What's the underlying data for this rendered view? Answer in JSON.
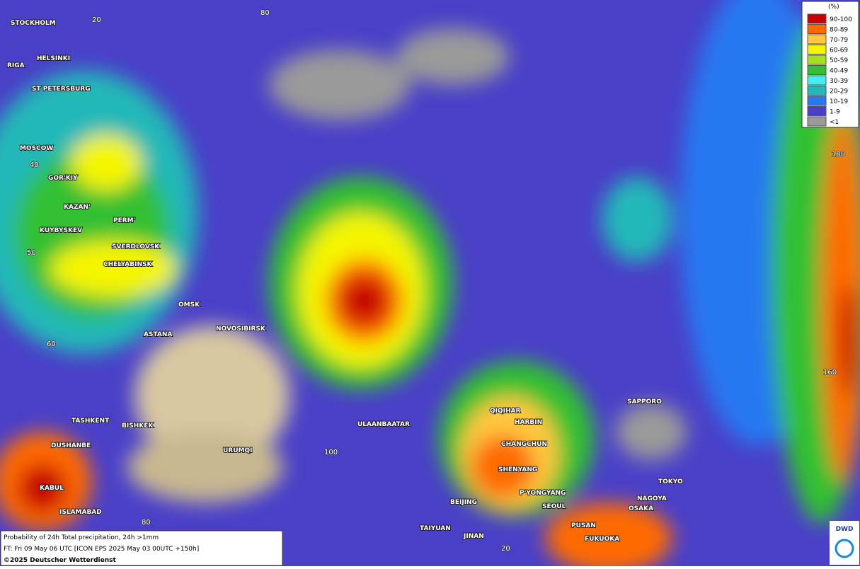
{
  "map": {
    "cities": [
      "STOCKHOLM",
      "HELSINKI",
      "RIGA",
      "ST PETERSBURG",
      "MOSCOW",
      "GOR'KIY",
      "KAZAN'",
      "PERM'",
      "KUYBYSKEV",
      "SVERDLOVSK",
      "CHELYABINSK",
      "OMSK",
      "ASTANA",
      "NOVOSIBIRSK",
      "TASHKENT",
      "BISHKEK",
      "DUSHANBE",
      "URUMQI",
      "KABUL",
      "ISLAMABAD",
      "ULAANBAATAR",
      "QIQIHAR",
      "HARBIN",
      "CHANGCHUN",
      "SHENYANG",
      "P'YONGYANG",
      "BEIJING",
      "SEOUL",
      "PUSAN",
      "TAIYUAN",
      "JINAN",
      "FUKUOKA",
      "SAPPORO",
      "TOKYO",
      "NAGOYA",
      "OSAKA"
    ],
    "grid_labels": [
      "20",
      "80",
      "40",
      "50",
      "60",
      "100",
      "180",
      "160",
      "80",
      "20"
    ],
    "legend": {
      "title": "(%)",
      "entries": [
        {
          "label": "90-100",
          "color": "#c80000"
        },
        {
          "label": "80-89",
          "color": "#ff6a00"
        },
        {
          "label": "70-79",
          "color": "#ffc840"
        },
        {
          "label": "60-69",
          "color": "#f5f500"
        },
        {
          "label": "50-59",
          "color": "#a8e020"
        },
        {
          "label": "40-49",
          "color": "#30c030"
        },
        {
          "label": "30-39",
          "color": "#40f0f0"
        },
        {
          "label": "20-29",
          "color": "#20b8b8"
        },
        {
          "label": "10-19",
          "color": "#2878f0"
        },
        {
          "label": "1-9",
          "color": "#4a40c8"
        },
        {
          "label": "<1",
          "color": "#9a9a9a"
        }
      ]
    },
    "footer": {
      "line1": "Probability of 24h Total precipitation, 24h >1mm",
      "line2": "FT: Fri 09 May 06 UTC [ICON EPS 2025 May 03 00UTC +150h]",
      "line3": "©2025 Deutscher Wetterdienst"
    },
    "logo": "DWD"
  }
}
